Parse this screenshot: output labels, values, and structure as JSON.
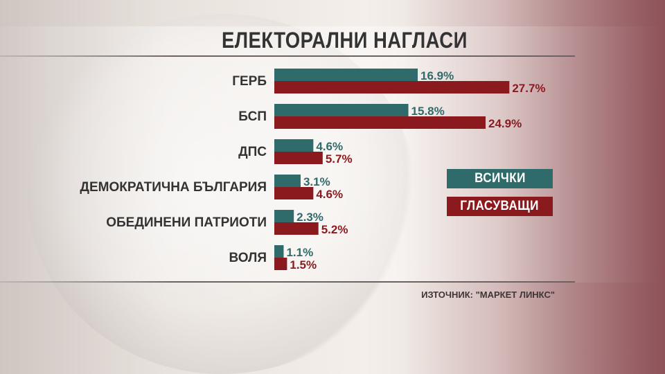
{
  "title": "ЕЛЕКТОРАЛНИ НАГЛАСИ",
  "source": "ИЗТОЧНИК: \"МАРКЕТ ЛИНКС\"",
  "colors": {
    "all": "#2f6b6b",
    "voters": "#8b1a1f",
    "label_text": "#333333"
  },
  "chart_data": {
    "type": "bar",
    "orientation": "horizontal",
    "categories": [
      "ГЕРБ",
      "БСП",
      "ДПС",
      "ДЕМОКРАТИЧНА БЪЛГАРИЯ",
      "ОБЕДИНЕНИ ПАТРИОТИ",
      "ВОЛЯ"
    ],
    "series": [
      {
        "name": "ВСИЧКИ",
        "values": [
          16.9,
          15.8,
          4.6,
          3.1,
          2.3,
          1.1
        ],
        "labels": [
          "16.9%",
          "15.8%",
          "4.6%",
          "3.1%",
          "2.3%",
          "1.1%"
        ]
      },
      {
        "name": "ГЛАСУВАЩИ",
        "values": [
          27.7,
          24.9,
          5.7,
          4.6,
          5.2,
          1.5
        ],
        "labels": [
          "27.7%",
          "24.9%",
          "5.7%",
          "4.6%",
          "5.2%",
          "1.5%"
        ]
      }
    ],
    "legend_position": "right",
    "grid": false
  }
}
